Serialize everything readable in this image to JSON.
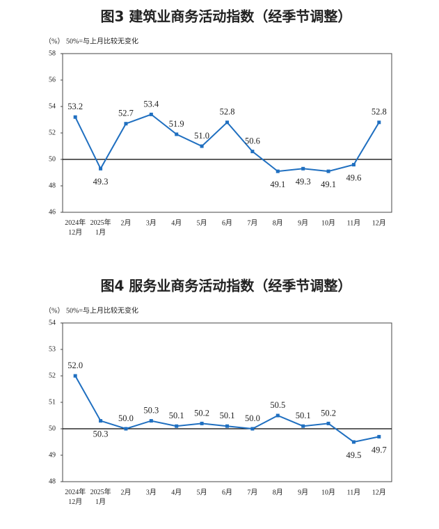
{
  "chart_data": [
    {
      "type": "line",
      "title": "图3 建筑业商务活动指数（经季节调整）",
      "y_unit": "（%）",
      "subtitle": "50%=与上月比较无变化",
      "categories": [
        "2024年\n12月",
        "2025年\n1月",
        "2月",
        "3月",
        "4月",
        "5月",
        "6月",
        "7月",
        "8月",
        "9月",
        "10月",
        "11月",
        "12月"
      ],
      "series": [
        {
          "color": "#1f6fc0",
          "values": [
            53.2,
            49.3,
            52.7,
            53.4,
            51.9,
            51.0,
            52.8,
            50.6,
            49.1,
            49.3,
            49.1,
            49.6,
            52.8
          ],
          "value_labels": [
            "53.2",
            "49.3",
            "52.7",
            "53.4",
            "51.9",
            "51.0",
            "52.8",
            "50.6",
            "49.1",
            "49.3",
            "49.1",
            "49.6",
            "52.8"
          ]
        }
      ],
      "ylim": [
        46,
        58
      ],
      "yticks": [
        46,
        48,
        50,
        52,
        54,
        56,
        58
      ],
      "reference_line": 50
    },
    {
      "type": "line",
      "title": "图4 服务业商务活动指数（经季节调整）",
      "y_unit": "（%）",
      "subtitle": "50%=与上月比较无变化",
      "categories": [
        "2024年\n12月",
        "2025年\n1月",
        "2月",
        "3月",
        "4月",
        "5月",
        "6月",
        "7月",
        "8月",
        "9月",
        "10月",
        "11月",
        "12月"
      ],
      "series": [
        {
          "color": "#1f6fc0",
          "values": [
            52.0,
            50.3,
            50.0,
            50.3,
            50.1,
            50.2,
            50.1,
            50.0,
            50.5,
            50.1,
            50.2,
            49.5,
            49.7
          ],
          "value_labels": [
            "52.0",
            "50.3",
            "50.0",
            "50.3",
            "50.1",
            "50.2",
            "50.1",
            "50.0",
            "50.5",
            "50.1",
            "50.2",
            "49.5",
            "49.7"
          ]
        }
      ],
      "ylim": [
        48,
        54
      ],
      "yticks": [
        48,
        49,
        50,
        51,
        52,
        53,
        54
      ],
      "reference_line": 50
    }
  ]
}
